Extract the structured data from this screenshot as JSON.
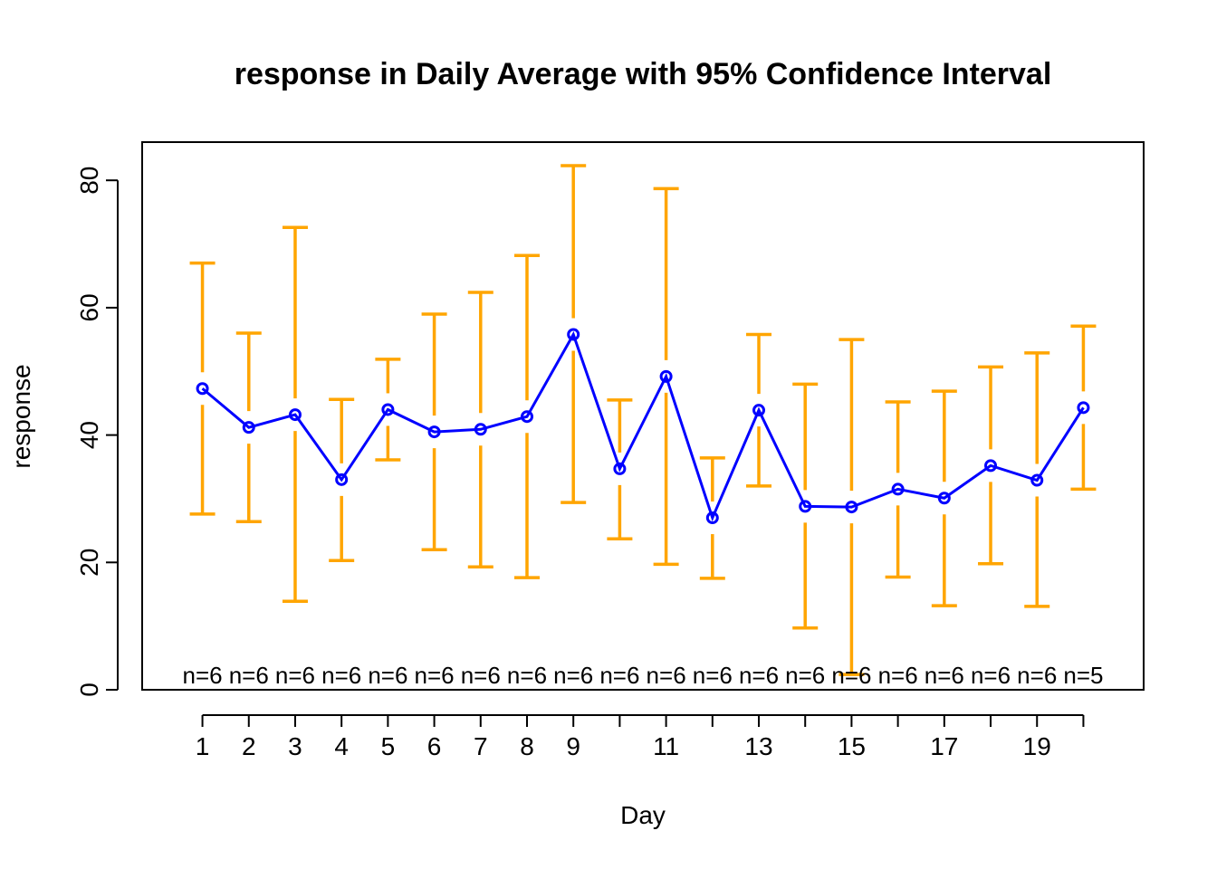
{
  "chart_data": {
    "type": "line",
    "title": "response in Daily Average with 95% Confidence Interval",
    "xlabel": "Day",
    "ylabel": "response",
    "x": [
      1,
      2,
      3,
      4,
      5,
      6,
      7,
      8,
      9,
      10,
      11,
      12,
      13,
      14,
      15,
      16,
      17,
      18,
      19,
      20
    ],
    "x_tick_labels": [
      "1",
      "2",
      "3",
      "4",
      "5",
      "6",
      "7",
      "8",
      "9",
      "11",
      "13",
      "15",
      "17",
      "19"
    ],
    "x_tick_labels_at": [
      1,
      2,
      3,
      4,
      5,
      6,
      7,
      8,
      9,
      11,
      13,
      15,
      17,
      19
    ],
    "y_ticks": [
      0,
      20,
      40,
      60,
      80
    ],
    "xlim": [
      -0.3,
      21.3
    ],
    "ylim": [
      0,
      86
    ],
    "grid": false,
    "series": [
      {
        "values": [
          47.3,
          41.2,
          43.2,
          33.0,
          44.0,
          40.5,
          40.9,
          42.9,
          55.8,
          34.7,
          49.2,
          27.0,
          43.9,
          28.8,
          28.7,
          31.5,
          30.1,
          35.2,
          32.9,
          44.3
        ],
        "color": "#0000ff"
      }
    ],
    "ci_lower": [
      27.6,
      26.4,
      13.9,
      20.3,
      36.1,
      22.0,
      19.3,
      17.6,
      29.4,
      23.7,
      19.7,
      17.5,
      32.0,
      9.7,
      2.4,
      17.7,
      13.2,
      19.8,
      13.1,
      31.5
    ],
    "ci_upper": [
      67.0,
      56.0,
      72.6,
      45.6,
      51.9,
      59.0,
      62.4,
      68.2,
      82.3,
      45.5,
      78.7,
      36.4,
      55.8,
      48.0,
      55.0,
      45.2,
      46.9,
      50.7,
      52.9,
      57.1
    ],
    "ci_color": "#ffa500",
    "n_labels": [
      "n=6",
      "n=6",
      "n=6",
      "n=6",
      "n=6",
      "n=6",
      "n=6",
      "n=6",
      "n=6",
      "n=6",
      "n=6",
      "n=6",
      "n=6",
      "n=6",
      "n=6",
      "n=6",
      "n=6",
      "n=6",
      "n=6",
      "n=5"
    ]
  }
}
